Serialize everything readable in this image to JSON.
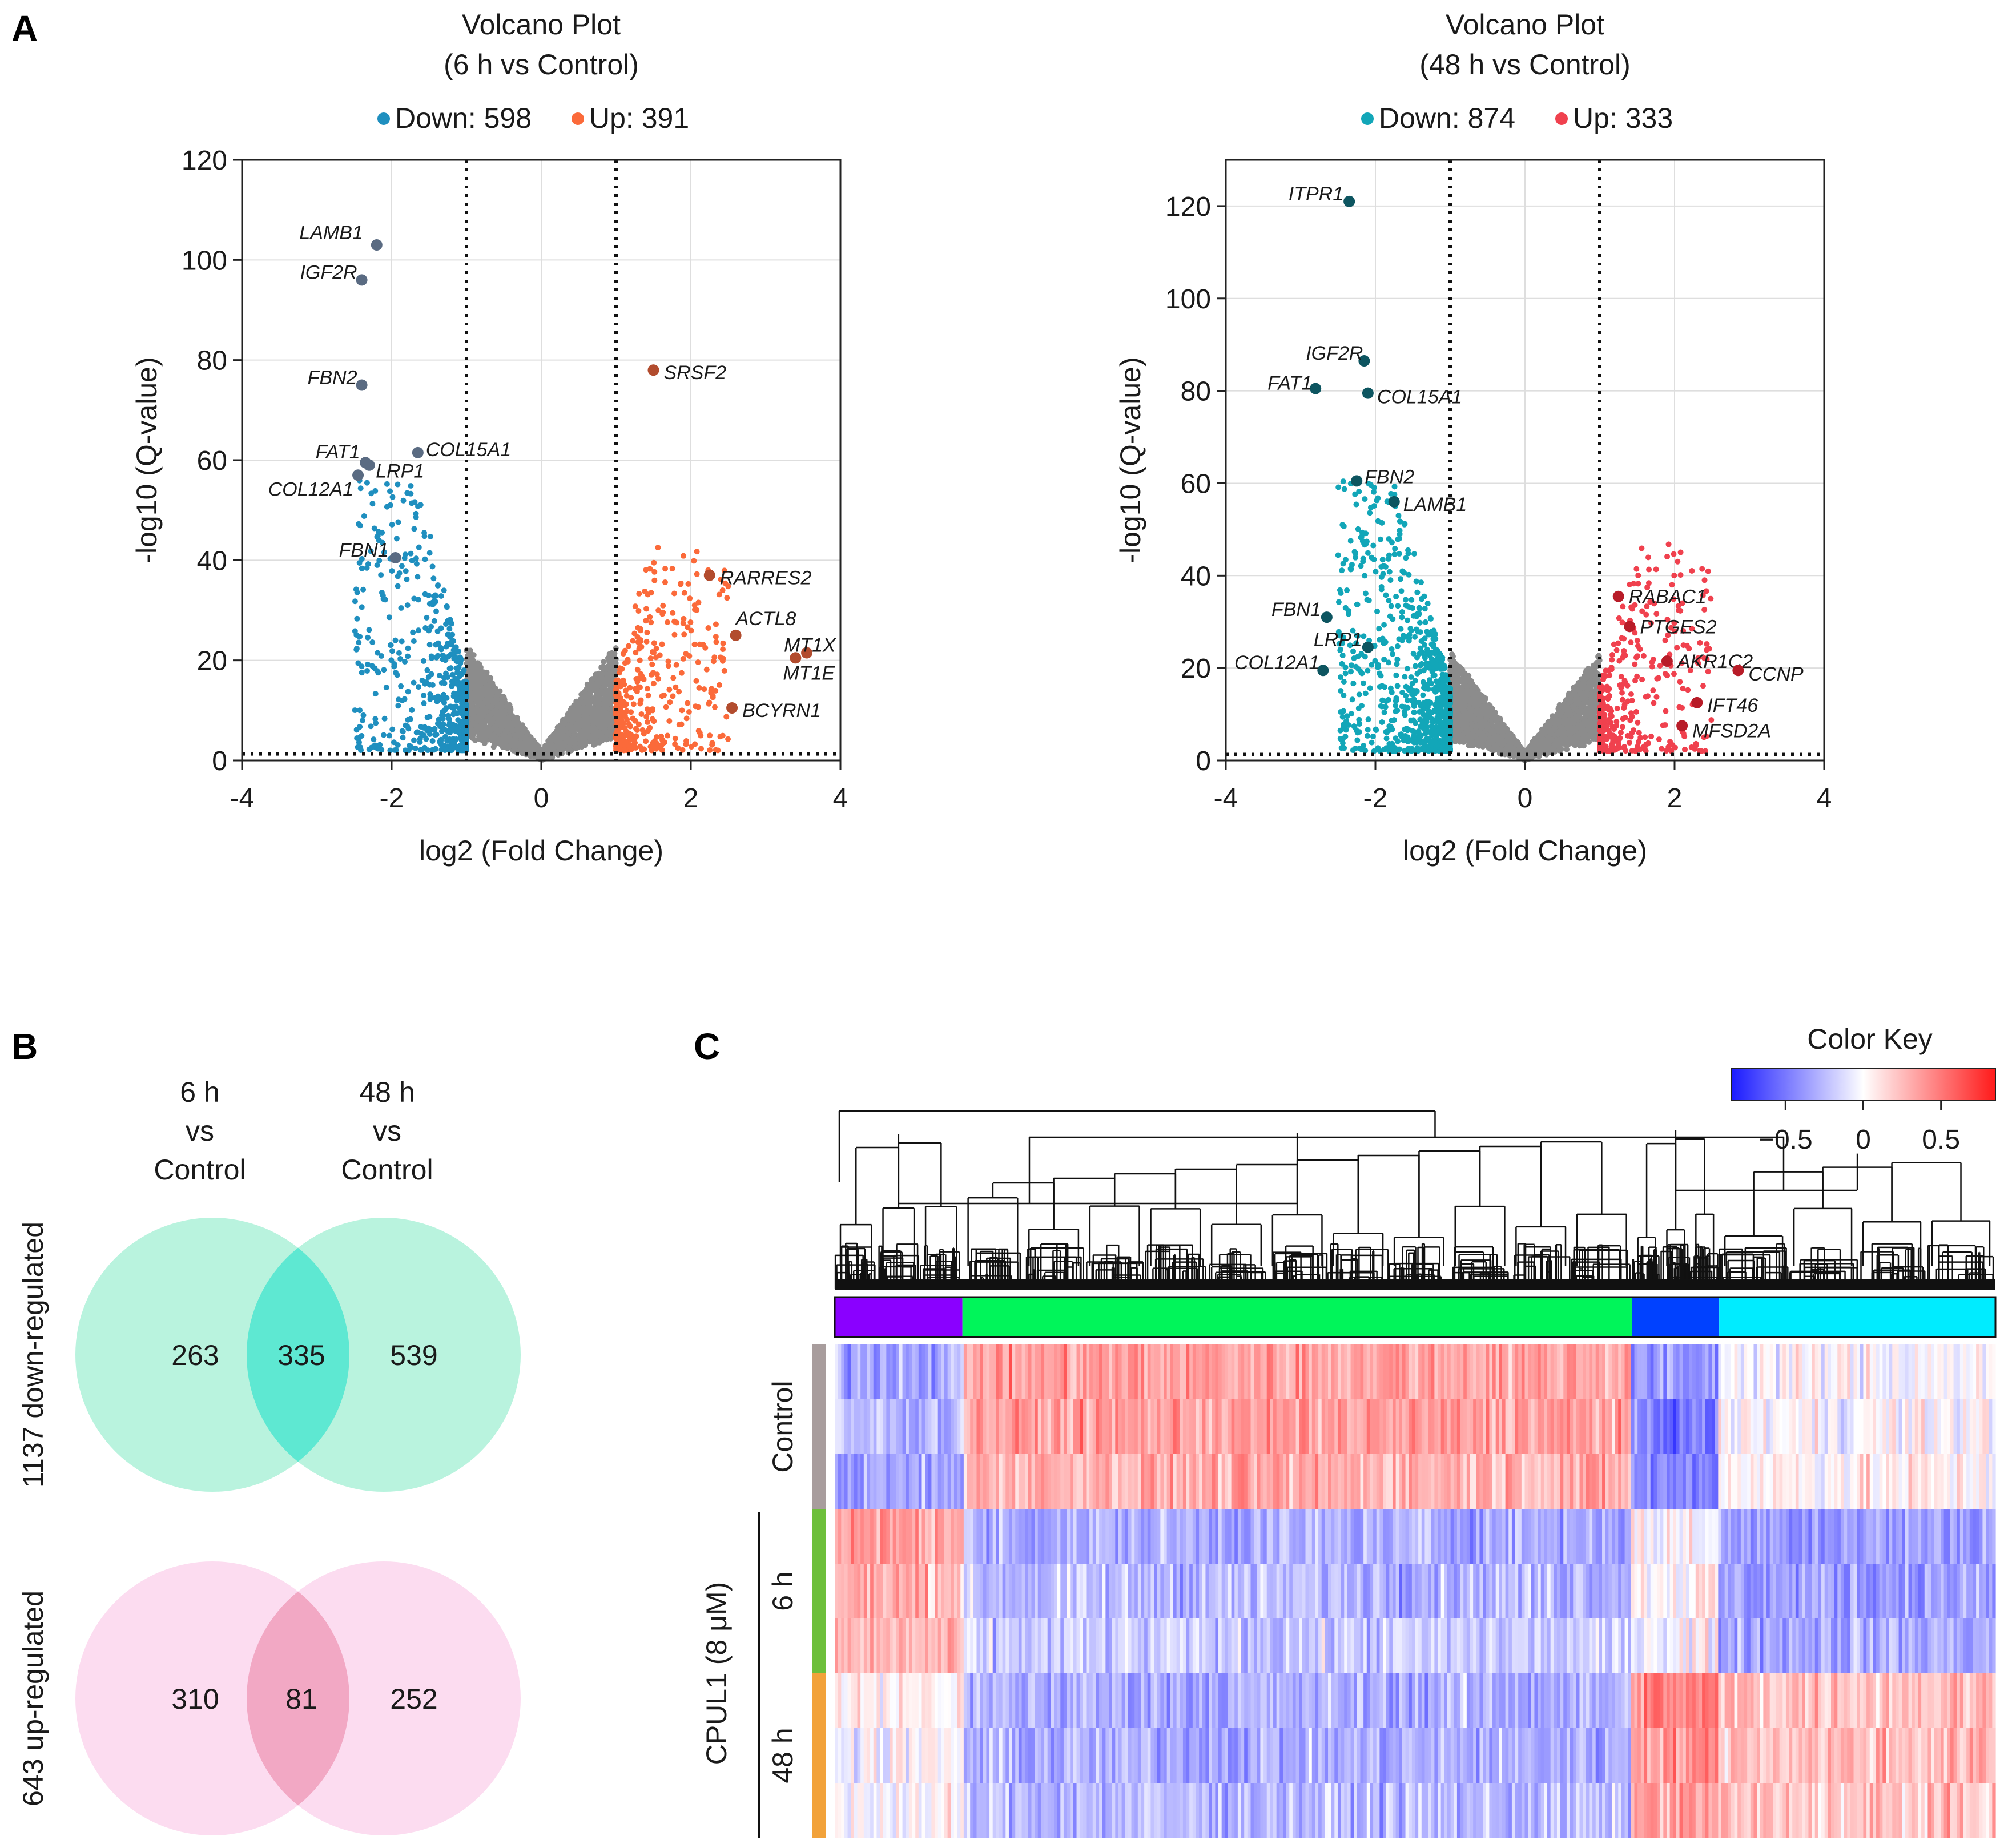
{
  "panel_labels": {
    "a": "A",
    "b": "B",
    "c": "C"
  },
  "colors": {
    "down6": "#1f8fbf",
    "up6": "#fb6a3a",
    "down48": "#12a6b8",
    "up48": "#f0414e",
    "ns": "#8c8c8c",
    "label6_down": "#5a6b82",
    "label6_up": "#b24c2e",
    "label48_down": "#0d5560",
    "label48_up": "#b81c28",
    "venn_down": "#a8f0d6",
    "venn_down_overlap": "#5ee8d2",
    "venn_up": "#fbd3ec",
    "venn_up_overlap": "#f2a8c4"
  },
  "chart_data": [
    {
      "id": "volcano_6h",
      "type": "scatter",
      "title": [
        "Volcano Plot",
        "(6 h vs Control)"
      ],
      "legend": [
        {
          "label": "Down: 598",
          "color": "#1f8fbf"
        },
        {
          "label": "Up: 391",
          "color": "#fb6a3a"
        }
      ],
      "xlabel": "log2 (Fold Change)",
      "ylabel": "-log10 (Q-value)",
      "xlim": [
        -4,
        4
      ],
      "ylim": [
        0,
        120
      ],
      "xticks": [
        -4,
        -2,
        0,
        2,
        4
      ],
      "yticks": [
        0,
        20,
        40,
        60,
        80,
        100,
        120
      ],
      "fc_threshold": [
        -1,
        1
      ],
      "q_threshold": 1.3,
      "counts": {
        "down": 598,
        "up": 391
      },
      "genes": [
        {
          "name": "LAMB1",
          "x": -2.2,
          "y": 103,
          "dir": "down"
        },
        {
          "name": "IGF2R",
          "x": -2.4,
          "y": 96,
          "dir": "down"
        },
        {
          "name": "FBN2",
          "x": -2.4,
          "y": 75,
          "dir": "down"
        },
        {
          "name": "FAT1",
          "x": -2.3,
          "y": 59,
          "dir": "down"
        },
        {
          "name": "COL12A1",
          "x": -2.45,
          "y": 57,
          "dir": "down"
        },
        {
          "name": "LRP1",
          "x": -2.35,
          "y": 59.5,
          "dir": "down"
        },
        {
          "name": "COL15A1",
          "x": -1.65,
          "y": 61.5,
          "dir": "down"
        },
        {
          "name": "FBN1",
          "x": -1.95,
          "y": 40.5,
          "dir": "down"
        },
        {
          "name": "SRSF2",
          "x": 1.5,
          "y": 78,
          "dir": "up"
        },
        {
          "name": "RARRES2",
          "x": 2.25,
          "y": 37,
          "dir": "up"
        },
        {
          "name": "ACTL8",
          "x": 2.6,
          "y": 25,
          "dir": "up"
        },
        {
          "name": "MT1X",
          "x": 3.55,
          "y": 21.5,
          "dir": "up"
        },
        {
          "name": "MT1E",
          "x": 3.4,
          "y": 20.5,
          "dir": "up"
        },
        {
          "name": "BCYRN1",
          "x": 2.55,
          "y": 10.5,
          "dir": "up"
        }
      ]
    },
    {
      "id": "volcano_48h",
      "type": "scatter",
      "title": [
        "Volcano Plot",
        "(48 h vs Control)"
      ],
      "legend": [
        {
          "label": "Down: 874",
          "color": "#12a6b8"
        },
        {
          "label": "Up: 333",
          "color": "#f0414e"
        }
      ],
      "xlabel": "log2 (Fold Change)",
      "ylabel": "-log10 (Q-value)",
      "xlim": [
        -4,
        4
      ],
      "ylim": [
        0,
        130
      ],
      "xticks": [
        -4,
        -2,
        0,
        2,
        4
      ],
      "yticks": [
        0,
        20,
        40,
        60,
        80,
        100,
        120
      ],
      "fc_threshold": [
        -1,
        1
      ],
      "q_threshold": 1.3,
      "counts": {
        "down": 874,
        "up": 333
      },
      "genes": [
        {
          "name": "ITPR1",
          "x": -2.35,
          "y": 121,
          "dir": "down"
        },
        {
          "name": "IGF2R",
          "x": -2.15,
          "y": 86.5,
          "dir": "down"
        },
        {
          "name": "FAT1",
          "x": -2.8,
          "y": 80.5,
          "dir": "down"
        },
        {
          "name": "COL15A1",
          "x": -2.1,
          "y": 79.5,
          "dir": "down"
        },
        {
          "name": "FBN2",
          "x": -2.25,
          "y": 60.5,
          "dir": "down"
        },
        {
          "name": "LAMB1",
          "x": -1.75,
          "y": 56,
          "dir": "down"
        },
        {
          "name": "FBN1",
          "x": -2.65,
          "y": 31,
          "dir": "down"
        },
        {
          "name": "LRP1",
          "x": -2.1,
          "y": 24.5,
          "dir": "down"
        },
        {
          "name": "COL12A1",
          "x": -2.7,
          "y": 19.5,
          "dir": "down"
        },
        {
          "name": "RABAC1",
          "x": 1.25,
          "y": 35.5,
          "dir": "up"
        },
        {
          "name": "PTGES2",
          "x": 1.4,
          "y": 29,
          "dir": "up"
        },
        {
          "name": "AKR1C2",
          "x": 1.9,
          "y": 21.5,
          "dir": "up"
        },
        {
          "name": "CCNP",
          "x": 2.85,
          "y": 19.5,
          "dir": "up"
        },
        {
          "name": "IFT46",
          "x": 2.3,
          "y": 12.5,
          "dir": "up"
        },
        {
          "name": "MFSD2A",
          "x": 2.1,
          "y": 7.5,
          "dir": "up"
        }
      ]
    },
    {
      "id": "venn",
      "type": "venn",
      "columns": [
        [
          "6 h",
          "vs",
          "Control"
        ],
        [
          "48 h",
          "vs",
          "Control"
        ]
      ],
      "sets": [
        {
          "label": "1137 down-regulated",
          "left_only": 263,
          "both": 335,
          "right_only": 539
        },
        {
          "label": "643 up-regulated",
          "left_only": 310,
          "both": 81,
          "right_only": 252
        }
      ]
    },
    {
      "id": "heatmap",
      "type": "heatmap",
      "color_key": {
        "title": "Color Key",
        "ticks": [
          "−0.5",
          "0",
          "0.5"
        ],
        "range": [
          -0.85,
          0.85
        ],
        "tick_values": [
          -0.5,
          0,
          0.5
        ]
      },
      "clusters": [
        {
          "color": "#8a00ff",
          "fraction": 0.11
        },
        {
          "color": "#00f55a",
          "fraction": 0.577
        },
        {
          "color": "#0041ff",
          "fraction": 0.075
        },
        {
          "color": "#00ecff",
          "fraction": 0.238
        }
      ],
      "row_groups": [
        {
          "label": "Control",
          "color": "#a89d9d",
          "rows": 3
        },
        {
          "label": "6 h",
          "color": "#6dbf3b",
          "rows": 3
        },
        {
          "label": "48 h",
          "color": "#f2a23a",
          "rows": 3
        }
      ],
      "treatment_label": "CPUL1 (8 μM)",
      "cluster_mean_profile": [
        [
          -0.3,
          0.35,
          -0.4,
          0.0
        ],
        [
          -0.25,
          0.35,
          -0.5,
          0.0
        ],
        [
          -0.35,
          0.3,
          -0.45,
          0.05
        ],
        [
          0.35,
          -0.3,
          0.0,
          -0.35
        ],
        [
          0.3,
          -0.25,
          0.05,
          -0.35
        ],
        [
          0.25,
          -0.2,
          0.0,
          -0.3
        ],
        [
          0.05,
          -0.3,
          0.45,
          0.25
        ],
        [
          0.0,
          -0.3,
          0.4,
          0.25
        ],
        [
          0.0,
          -0.25,
          0.35,
          0.2
        ]
      ]
    }
  ]
}
